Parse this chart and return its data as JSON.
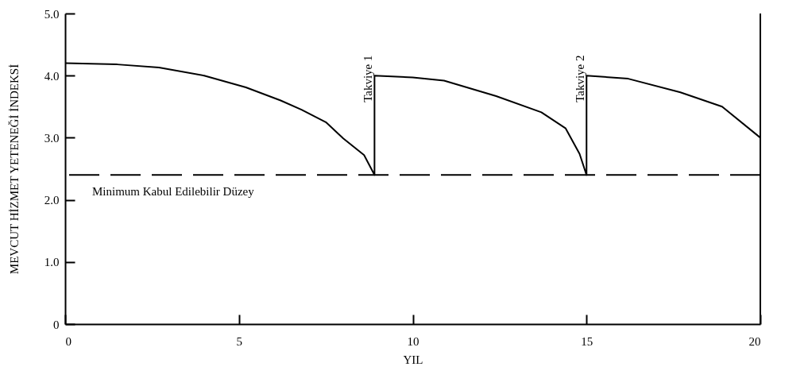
{
  "chart_data": {
    "type": "line",
    "xlabel": "YIL",
    "ylabel": "MEVCUT HİZMET YETENEĞİ İNDEKSİ",
    "xlim": [
      0,
      20
    ],
    "ylim": [
      0,
      5
    ],
    "xticks": [
      0,
      5,
      10,
      15,
      20
    ],
    "yticks": [
      0,
      {
        "value": 1,
        "label": "1.0"
      },
      {
        "value": 2,
        "label": "2.0"
      },
      {
        "value": 3,
        "label": "3.0"
      },
      {
        "value": 4,
        "label": "4.0"
      },
      {
        "value": 5,
        "label": "5.0"
      }
    ],
    "grid": false,
    "marker": "none",
    "line_style": "solid",
    "series": [
      {
        "color": "#000000",
        "x": [
          0,
          1.5,
          2.7,
          4,
          5.2,
          6.2,
          6.8,
          7.5,
          8,
          8.6,
          8.9,
          8.9,
          10,
          10.9,
          12.4,
          13.7,
          14.4,
          14.8,
          15,
          15,
          16.2,
          17.7,
          18.9,
          20
        ],
        "values": [
          4.2,
          4.18,
          4.13,
          4.0,
          3.81,
          3.6,
          3.45,
          3.25,
          2.99,
          2.72,
          2.4,
          4.0,
          3.97,
          3.92,
          3.67,
          3.41,
          3.15,
          2.74,
          2.4,
          4.0,
          3.95,
          3.73,
          3.5,
          3.0
        ]
      }
    ],
    "ref_lines": [
      {
        "axis": "y",
        "value": 2.4,
        "label": "Minimum Kabul Edilebilir Düzey",
        "color": "#000000",
        "line_style": "dashed"
      },
      {
        "axis": "x",
        "value": 20,
        "color": "#000000",
        "line_style": "solid"
      }
    ],
    "annotations": [
      {
        "text": "Takviye 1",
        "x": 8.9,
        "y": 4.0
      },
      {
        "text": "Takviye 2",
        "x": 15,
        "y": 4.0
      }
    ]
  }
}
